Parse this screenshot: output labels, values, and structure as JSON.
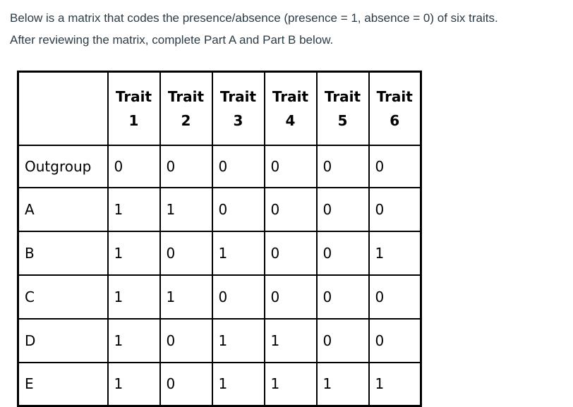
{
  "intro": {
    "line1": "Below is a matrix that codes the presence/absence (presence = 1, absence = 0) of six traits.",
    "line2": "After reviewing the matrix, complete Part A and Part B below."
  },
  "matrix": {
    "corner": "",
    "headers": [
      {
        "top": "Trait",
        "bottom": "1"
      },
      {
        "top": "Trait",
        "bottom": "2"
      },
      {
        "top": "Trait",
        "bottom": "3"
      },
      {
        "top": "Trait",
        "bottom": "4"
      },
      {
        "top": "Trait",
        "bottom": "5"
      },
      {
        "top": "Trait",
        "bottom": "6"
      }
    ],
    "rows": [
      {
        "taxon": "Outgroup",
        "values": [
          "0",
          "0",
          "0",
          "0",
          "0",
          "0"
        ]
      },
      {
        "taxon": "A",
        "values": [
          "1",
          "1",
          "0",
          "0",
          "0",
          "0"
        ]
      },
      {
        "taxon": "B",
        "values": [
          "1",
          "0",
          "1",
          "0",
          "0",
          "1"
        ]
      },
      {
        "taxon": "C",
        "values": [
          "1",
          "1",
          "0",
          "0",
          "0",
          "0"
        ]
      },
      {
        "taxon": "D",
        "values": [
          "1",
          "0",
          "1",
          "1",
          "0",
          "0"
        ]
      },
      {
        "taxon": "E",
        "values": [
          "1",
          "0",
          "1",
          "1",
          "1",
          "1"
        ]
      }
    ]
  }
}
